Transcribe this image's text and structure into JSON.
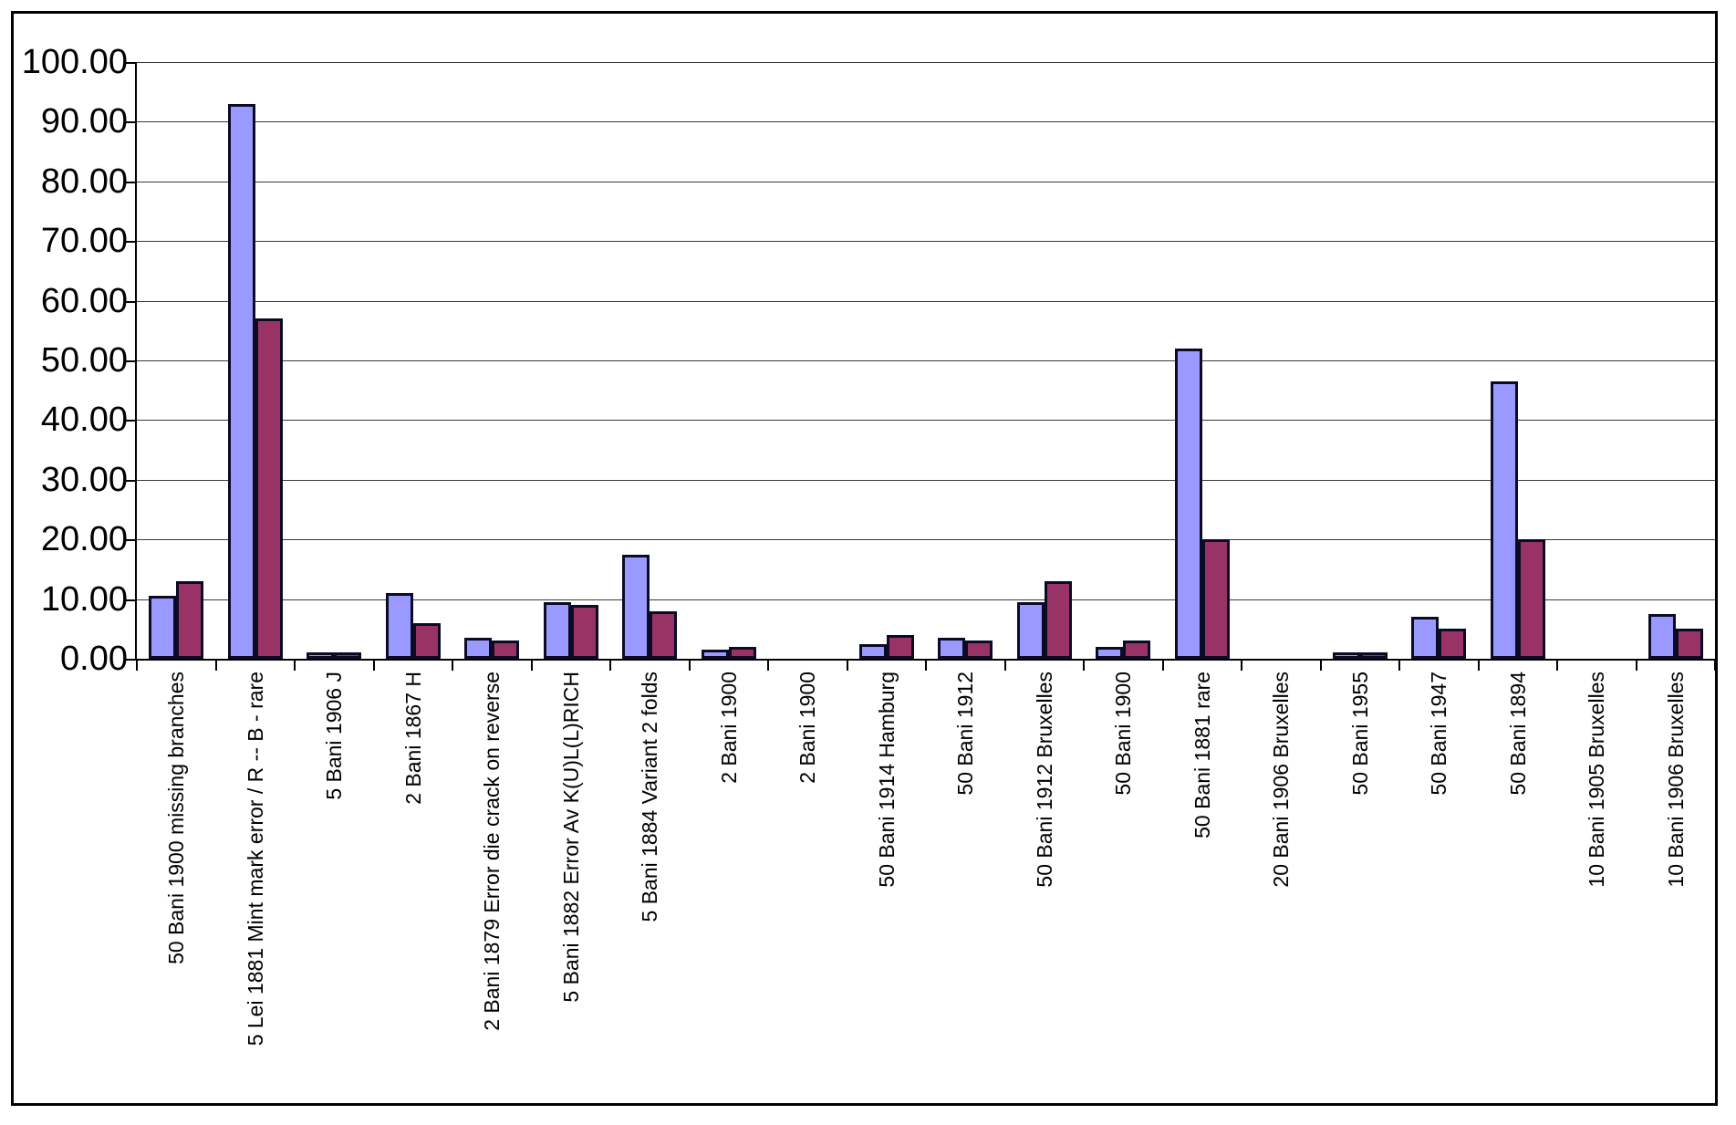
{
  "chart_data": {
    "type": "bar",
    "title": "",
    "legend": "none",
    "grid": true,
    "ylim": [
      0,
      100
    ],
    "y_ticks": [
      "100.00",
      "90.00",
      "80.00",
      "70.00",
      "60.00",
      "50.00",
      "40.00",
      "30.00",
      "20.00",
      "10.00",
      "0.00"
    ],
    "categories": [
      "50 Bani 1900 missing branches",
      "5 Lei 1881 Mint mark error / R -- B - rare",
      "5 Bani 1906 J",
      "2 Bani 1867 H",
      "2 Bani 1879 Error die crack on reverse",
      "5 Bani 1882 Error Av K(U)L(L)RICH",
      "5 Bani 1884 Variant 2 folds",
      "2 Bani 1900",
      "2 Bani 1900",
      "50 Bani 1914 Hamburg",
      "50 Bani 1912",
      "50 Bani 1912 Bruxelles",
      "50 Bani 1900",
      "50 Bani 1881 rare",
      "20 Bani 1906 Bruxelles",
      "50 Bani 1955",
      "50 Bani 1947",
      "50 Bani 1894",
      "10 Bani 1905 Bruxelles",
      "10 Bani 1906 Bruxelles"
    ],
    "series": [
      {
        "name": "purple",
        "color": "#9999FF",
        "values": [
          10.5,
          93,
          1,
          11,
          3.5,
          9.5,
          17.5,
          1.5,
          0,
          2.5,
          3.5,
          9.5,
          2,
          52,
          0,
          1,
          7,
          46.5,
          0,
          7.5
        ]
      },
      {
        "name": "maroon",
        "color": "#993366",
        "values": [
          13,
          57,
          1,
          6,
          3,
          9,
          8,
          2,
          0,
          4,
          3,
          13,
          3,
          20,
          0,
          1,
          5,
          20,
          0,
          5
        ]
      }
    ],
    "colors": {
      "background": "#FFFFFF",
      "bar_border": "#0B0B26",
      "axis": "#000000",
      "gridline": "#3A3A3A"
    }
  }
}
